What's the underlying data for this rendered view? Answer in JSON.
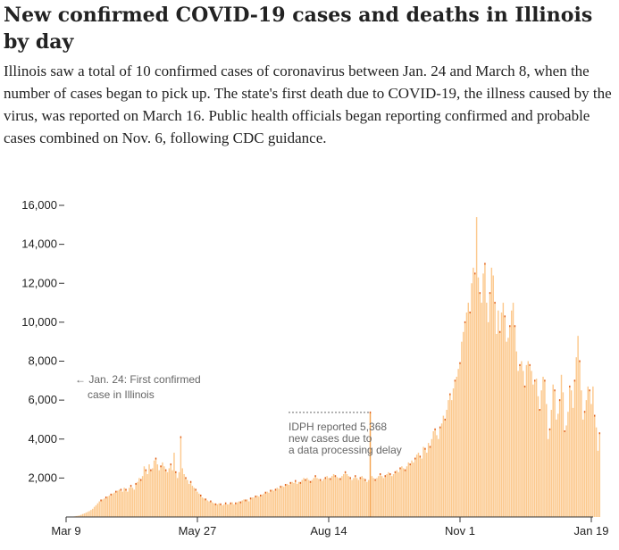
{
  "header": {
    "title": "New confirmed COVID-19 cases and deaths in Illinois by day",
    "subtitle": "Illinois saw a total of 10 confirmed cases of coronavirus between Jan. 24 and March 8, when the number of cases began to pick up. The state's first death due to COVID-19, the illness caused by the virus, was reported on March 16. Public health officials began reporting confirmed and probable cases combined on Nov. 6, following CDC guidance."
  },
  "colors": {
    "bar": "#fcc98e",
    "bar_highlight": "#f5a450",
    "death_mark": "#e0601a",
    "axis": "#333333",
    "annotation": "#666666"
  },
  "chart_data": {
    "type": "bar",
    "title": "",
    "xlabel": "",
    "ylabel": "",
    "ylim": [
      0,
      16000
    ],
    "y_ticks": [
      2000,
      4000,
      6000,
      8000,
      10000,
      12000,
      14000,
      16000
    ],
    "y_tick_labels": [
      "2,000",
      "4,000",
      "6,000",
      "8,000",
      "10,000",
      "12,000",
      "14,000",
      "16,000"
    ],
    "x_ticks": [
      "2020-03-09",
      "2020-05-27",
      "2020-08-14",
      "2020-11-01",
      "2021-01-19"
    ],
    "x_tick_labels": [
      "Mar 9",
      "May 27",
      "Aug 14",
      "Nov 1",
      "Jan 19"
    ],
    "grid": false,
    "series": [
      {
        "name": "",
        "start": "2020-03-09",
        "values": [
          5,
          3,
          7,
          12,
          20,
          30,
          50,
          60,
          80,
          110,
          150,
          180,
          220,
          260,
          300,
          360,
          420,
          520,
          600,
          700,
          800,
          850,
          900,
          950,
          1000,
          1050,
          1100,
          1150,
          1200,
          1250,
          1300,
          1350,
          1400,
          1400,
          1300,
          1500,
          1400,
          1300,
          1500,
          1600,
          1500,
          1400,
          1700,
          1800,
          2000,
          1900,
          2100,
          2600,
          2400,
          2200,
          2700,
          2400,
          2500,
          2900,
          3000,
          2700,
          2400,
          2600,
          2800,
          2600,
          2400,
          2300,
          2500,
          2700,
          2400,
          3300,
          2300,
          2000,
          2300,
          4100,
          2500,
          2200,
          2000,
          1900,
          1700,
          1800,
          1600,
          1500,
          1400,
          1300,
          1200,
          1100,
          1000,
          950,
          900,
          850,
          800,
          800,
          750,
          700,
          650,
          650,
          700,
          650,
          600,
          650,
          700,
          650,
          650,
          700,
          750,
          650,
          700,
          750,
          800,
          750,
          850,
          900,
          850,
          900,
          800,
          950,
          1000,
          1000,
          1050,
          1100,
          1050,
          1100,
          1150,
          1200,
          1250,
          1300,
          1250,
          1350,
          1400,
          1350,
          1400,
          1500,
          1450,
          1550,
          1600,
          1550,
          1650,
          1700,
          1650,
          1750,
          1800,
          1750,
          1850,
          1700,
          1800,
          1750,
          1900,
          2000,
          1900,
          2000,
          1900,
          1800,
          1900,
          2000,
          2100,
          2000,
          1950,
          1900,
          1850,
          1950,
          2000,
          2100,
          2000,
          1950,
          2100,
          2200,
          2100,
          2050,
          2000,
          1950,
          2100,
          2200,
          2300,
          2200,
          2100,
          2000,
          1900,
          2000,
          2100,
          2000,
          1900,
          2000,
          2100,
          2000,
          1900,
          1800,
          1900,
          5368,
          2100,
          2000,
          1900,
          2000,
          2100,
          2200,
          2100,
          2000,
          2100,
          2200,
          2300,
          2200,
          2100,
          2200,
          2300,
          2400,
          2300,
          2500,
          2600,
          2500,
          2400,
          2600,
          2800,
          2700,
          2900,
          2800,
          3000,
          3200,
          3300,
          3100,
          3000,
          3600,
          3500,
          3300,
          3800,
          3600,
          4000,
          4400,
          4500,
          4200,
          4000,
          4600,
          4800,
          5200,
          5000,
          5500,
          6000,
          6300,
          6000,
          6600,
          7000,
          7200,
          7600,
          7900,
          9000,
          9500,
          10000,
          10500,
          11000,
          10500,
          12000,
          12800,
          12500,
          15400,
          12300,
          11500,
          11000,
          12500,
          13000,
          11000,
          10000,
          11500,
          12800,
          12400,
          11000,
          9400,
          10600,
          9500,
          10500,
          11000,
          10300,
          9000,
          9200,
          9800,
          10600,
          11000,
          9800,
          8500,
          7500,
          7800,
          8000,
          7500,
          6700,
          7800,
          8000,
          7800,
          7500,
          6800,
          7000,
          7100,
          6200,
          5500,
          6500,
          7200,
          7000,
          5800,
          4000,
          4500,
          5500,
          6800,
          6500,
          5000,
          5300,
          6000,
          7300,
          6400,
          4400,
          4700,
          5400,
          6700,
          6500,
          5600,
          7000,
          8200,
          9300,
          8000,
          6500,
          5000,
          5400,
          6000,
          6700,
          6500,
          5800,
          6700,
          5200,
          4600,
          3400,
          4300
        ]
      }
    ],
    "annotations": [
      {
        "text_lines": [
          "← Jan. 24: First confirmed",
          "case in Illinois"
        ]
      },
      {
        "text_lines": [
          "IDPH reported 5,368",
          "new cases due to",
          "a data processing delay"
        ]
      }
    ]
  }
}
